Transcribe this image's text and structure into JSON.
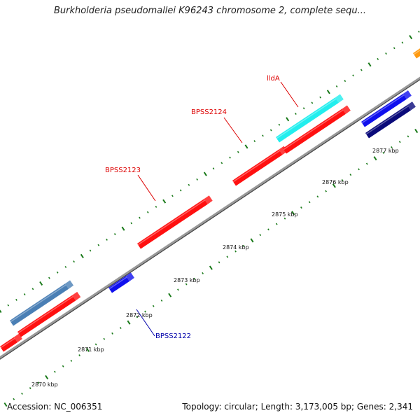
{
  "title": "Burkholderia pseudomallei K96243 chromosome 2, complete sequ...",
  "footer": {
    "accession": "Accession: NC_006351",
    "summary": "Topology: circular; Length: 3,173,005 bp; Genes: 2,341"
  },
  "colors": {
    "backbone": "#888888",
    "tick": "#1a7a1a",
    "gene_red": "#ff1010",
    "gene_blue": "#1010ee",
    "gene_navy": "#0a0a7a",
    "gene_steel": "#4a7fb5",
    "gene_cyan": "#22eeee",
    "gene_orange": "#ff9a10",
    "label_red": "#dd0000",
    "label_blue": "#0000aa"
  },
  "scale_labels": [
    "2870 kbp",
    "2871 kbp",
    "2872 kbp",
    "2873 kbp",
    "2874 kbp",
    "2875 kbp",
    "2876 kbp",
    "2877 kbp"
  ],
  "gene_labels": [
    {
      "name": "BPSS2123",
      "color": "red"
    },
    {
      "name": "BPSS2124",
      "color": "red"
    },
    {
      "name": "lldA",
      "color": "red"
    },
    {
      "name": "BPSS2122",
      "color": "blue"
    }
  ]
}
